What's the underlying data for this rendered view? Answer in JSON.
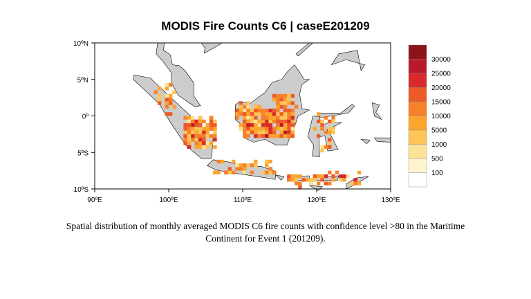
{
  "title": "MODIS Fire Counts C6 | caseE201209",
  "chart_data": {
    "type": "heatmap",
    "title": "MODIS Fire Counts C6 | caseE201209",
    "x_ticks": [
      "90ºE",
      "100ºE",
      "110ºE",
      "120ºE",
      "130ºE"
    ],
    "y_ticks": [
      "10ºN",
      "5ºN",
      "0º",
      "5ºS",
      "10ºS"
    ],
    "xlim": [
      90,
      130
    ],
    "ylim": [
      -10,
      10
    ],
    "colorbar": {
      "labels": [
        "100",
        "500",
        "1000",
        "5000",
        "10000",
        "15000",
        "20000",
        "25000",
        "30000"
      ],
      "colors": [
        "#FFFFFF",
        "#FFF4CC",
        "#FDE396",
        "#FDC557",
        "#FBA52E",
        "#F7812B",
        "#EC5A29",
        "#D92A2B",
        "#B9192A",
        "#8E141C"
      ]
    },
    "land_color": "#CCCCCC"
  },
  "caption": "Spatial distribution of monthly averaged MODIS C6 fire counts with confidence level >80 in the Maritime Continent for Event 1 (201209)."
}
